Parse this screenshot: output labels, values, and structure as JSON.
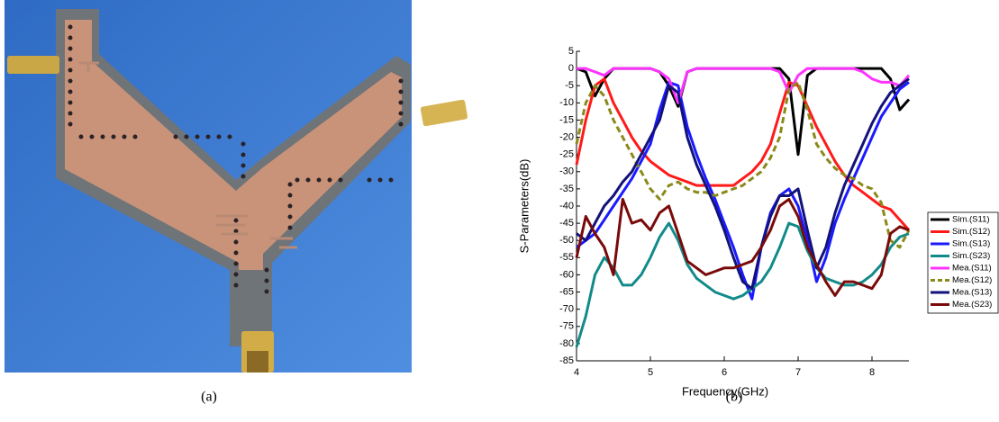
{
  "captions": [
    "(a)",
    "(b)"
  ],
  "chart_data": {
    "type": "line",
    "xlabel": "Frequency(GHz)",
    "ylabel": "S-Parameters(dB)",
    "xlim": [
      4,
      8.5
    ],
    "xticks": [
      4,
      5,
      6,
      7,
      8
    ],
    "ylim": [
      -85,
      5
    ],
    "yticks": [
      -85,
      -80,
      -75,
      -70,
      -65,
      -60,
      -55,
      -50,
      -45,
      -40,
      -35,
      -30,
      -25,
      -20,
      -15,
      -10,
      -5,
      0,
      5
    ],
    "legend": "right",
    "x": [
      4,
      4.125,
      4.25,
      4.375,
      4.5,
      4.625,
      4.75,
      4.875,
      5,
      5.125,
      5.25,
      5.375,
      5.5,
      5.625,
      5.75,
      5.875,
      6,
      6.125,
      6.25,
      6.375,
      6.5,
      6.625,
      6.75,
      6.875,
      7,
      7.125,
      7.25,
      7.375,
      7.5,
      7.625,
      7.75,
      7.875,
      8,
      8.125,
      8.25,
      8.375,
      8.5
    ],
    "series": [
      {
        "name": "Sim.(S11)",
        "color": "#000000",
        "dashed": false,
        "values": [
          0,
          -1,
          -8,
          -3,
          0,
          0,
          0,
          0,
          0,
          -1,
          -5,
          -11,
          -1,
          0,
          0,
          0,
          0,
          0,
          0,
          0,
          0,
          0,
          0,
          -3,
          -25,
          -2,
          0,
          0,
          0,
          0,
          0,
          0,
          0,
          0,
          -3,
          -12,
          -9
        ]
      },
      {
        "name": "Sim.(S12)",
        "color": "#ff1a1a",
        "dashed": false,
        "values": [
          -28,
          -15,
          -5,
          -3,
          -10,
          -15,
          -20,
          -24,
          -27,
          -29,
          -31,
          -32,
          -33,
          -34,
          -34,
          -34,
          -34,
          -34,
          -32,
          -30,
          -27,
          -22,
          -13,
          -4,
          -5,
          -11,
          -17,
          -22,
          -27,
          -31,
          -34,
          -36,
          -38,
          -40,
          -41,
          -44,
          -47
        ]
      },
      {
        "name": "Sim.(S13)",
        "color": "#1a1aff",
        "dashed": false,
        "values": [
          -52,
          -50,
          -48,
          -44,
          -40,
          -36,
          -32,
          -27,
          -22,
          -12,
          -4,
          -5,
          -17,
          -25,
          -32,
          -38,
          -45,
          -52,
          -60,
          -67,
          -52,
          -42,
          -37,
          -35,
          -40,
          -50,
          -62,
          -55,
          -45,
          -38,
          -32,
          -26,
          -20,
          -14,
          -10,
          -6,
          -4
        ]
      },
      {
        "name": "Sim.(S23)",
        "color": "#138a8a",
        "dashed": false,
        "values": [
          -81,
          -72,
          -60,
          -55,
          -58,
          -63,
          -63,
          -60,
          -55,
          -49,
          -45,
          -50,
          -57,
          -61,
          -63,
          -65,
          -66,
          -67,
          -66,
          -64,
          -62,
          -58,
          -52,
          -45,
          -46,
          -53,
          -58,
          -61,
          -62,
          -63,
          -63,
          -62,
          -60,
          -57,
          -52,
          -49,
          -48
        ]
      },
      {
        "name": "Mea.(S11)",
        "color": "#ff33ff",
        "dashed": false,
        "values": [
          0,
          0,
          -1,
          -2,
          0,
          0,
          0,
          0,
          0,
          -1,
          -3,
          -10,
          -1,
          0,
          0,
          0,
          0,
          0,
          0,
          0,
          0,
          0,
          -1,
          -7,
          -2,
          0,
          0,
          0,
          0,
          0,
          0,
          -1,
          -3,
          -4,
          -4,
          -5,
          -2
        ]
      },
      {
        "name": "Mea.(S12)",
        "color": "#8a8a1a",
        "dashed": true,
        "values": [
          -22,
          -10,
          -5,
          -8,
          -15,
          -20,
          -25,
          -30,
          -35,
          -38,
          -34,
          -33,
          -35,
          -36,
          -36,
          -37,
          -36,
          -35,
          -34,
          -32,
          -30,
          -26,
          -20,
          -6,
          -4,
          -12,
          -22,
          -26,
          -29,
          -31,
          -32,
          -34,
          -35,
          -39,
          -50,
          -52,
          -47
        ]
      },
      {
        "name": "Mea.(S13)",
        "color": "#12127a",
        "dashed": false,
        "values": [
          -48,
          -50,
          -45,
          -40,
          -37,
          -33,
          -30,
          -25,
          -20,
          -15,
          -5,
          -7,
          -20,
          -28,
          -34,
          -40,
          -47,
          -55,
          -62,
          -64,
          -52,
          -43,
          -37,
          -37,
          -35,
          -47,
          -58,
          -52,
          -42,
          -34,
          -28,
          -22,
          -16,
          -11,
          -7,
          -5,
          -3
        ]
      },
      {
        "name": "Mea.(S23)",
        "color": "#7a0a0a",
        "dashed": false,
        "values": [
          -55,
          -43,
          -48,
          -52,
          -60,
          -38,
          -45,
          -44,
          -47,
          -42,
          -40,
          -48,
          -56,
          -58,
          -60,
          -59,
          -58,
          -58,
          -57,
          -56,
          -52,
          -47,
          -40,
          -38,
          -43,
          -52,
          -57,
          -62,
          -66,
          -62,
          -62,
          -63,
          -64,
          -60,
          -48,
          -46,
          -47
        ]
      }
    ]
  }
}
